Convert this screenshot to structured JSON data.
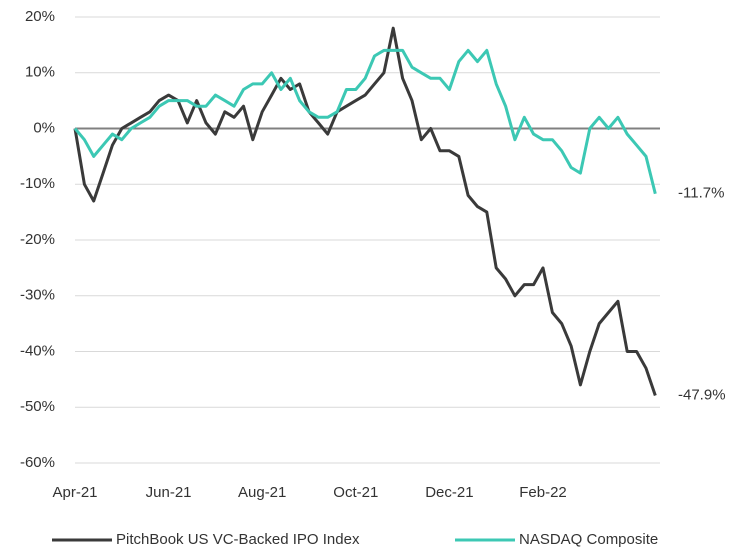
{
  "chart_data": {
    "type": "line",
    "categories": [
      "Apr-21",
      null,
      null,
      null,
      null,
      null,
      null,
      null,
      null,
      null,
      "Jun-21",
      null,
      null,
      null,
      null,
      null,
      null,
      null,
      null,
      null,
      "Aug-21",
      null,
      null,
      null,
      null,
      null,
      null,
      null,
      null,
      null,
      "Oct-21",
      null,
      null,
      null,
      null,
      null,
      null,
      null,
      null,
      null,
      "Dec-21",
      null,
      null,
      null,
      null,
      null,
      null,
      null,
      null,
      null,
      "Feb-22",
      null,
      null,
      null,
      null,
      null,
      null,
      null,
      null,
      null,
      null,
      null,
      null
    ],
    "series": [
      {
        "name": "PitchBook US VC-Backed IPO Index",
        "color": "#3a3a3a",
        "end_label": "-47.9%",
        "values": [
          0,
          -10,
          -13,
          -8,
          -3,
          0,
          1,
          2,
          3,
          5,
          6,
          5,
          1,
          5,
          1,
          -1,
          3,
          2,
          4,
          -2,
          3,
          6,
          9,
          7,
          8,
          3,
          1,
          -1,
          3,
          4,
          5,
          6,
          8,
          10,
          18,
          9,
          5,
          -2,
          0,
          -4,
          -4,
          -5,
          -12,
          -14,
          -15,
          -25,
          -27,
          -30,
          -28,
          -28,
          -25,
          -33,
          -35,
          -39,
          -46,
          -40,
          -35,
          -33,
          -31,
          -40,
          -40,
          -43,
          -47.9
        ]
      },
      {
        "name": "NASDAQ Composite",
        "color": "#3cc8b4",
        "end_label": "-11.7%",
        "values": [
          0,
          -2,
          -5,
          -3,
          -1,
          -2,
          0,
          1,
          2,
          4,
          5,
          5,
          5,
          4,
          4,
          6,
          5,
          4,
          7,
          8,
          8,
          10,
          7,
          9,
          5,
          3,
          2,
          2,
          3,
          7,
          7,
          9,
          13,
          14,
          14,
          14,
          11,
          10,
          9,
          9,
          7,
          12,
          14,
          12,
          14,
          8,
          4,
          -2,
          2,
          -1,
          -2,
          -2,
          -4,
          -7,
          -8,
          0,
          2,
          0,
          2,
          -1,
          -3,
          -5,
          -11.7
        ]
      }
    ],
    "ylim": [
      -60,
      20
    ],
    "yticks": [
      {
        "value": -60,
        "label": "-60%"
      },
      {
        "value": -50,
        "label": "-50%"
      },
      {
        "value": -40,
        "label": "-40%"
      },
      {
        "value": -30,
        "label": "-30%"
      },
      {
        "value": -20,
        "label": "-20%"
      },
      {
        "value": -10,
        "label": "-10%"
      },
      {
        "value": 0,
        "label": "0%"
      },
      {
        "value": 10,
        "label": "10%"
      },
      {
        "value": 20,
        "label": "20%"
      }
    ],
    "grid": true,
    "legend": "bottom",
    "end_label_color": "#e00000"
  }
}
